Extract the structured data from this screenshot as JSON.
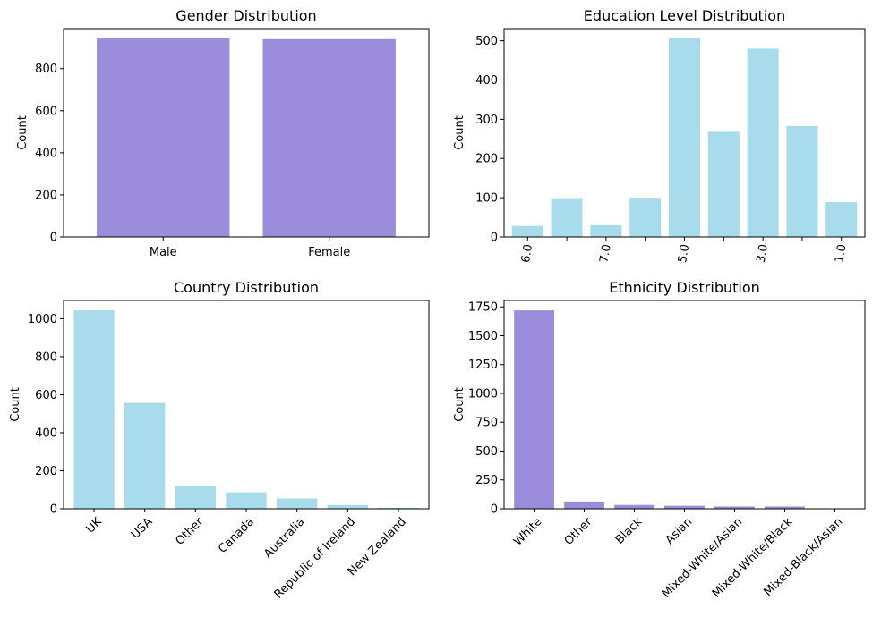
{
  "chart_data": [
    {
      "type": "bar",
      "title": "Gender Distribution",
      "xlabel": "",
      "ylabel": "Count",
      "categories": [
        "Male",
        "Female"
      ],
      "values": [
        943,
        940
      ],
      "ylim": [
        0,
        990
      ],
      "yticks": [
        0,
        200,
        400,
        600,
        800
      ],
      "color": "#9b8ddb",
      "xtick_rotation": 0
    },
    {
      "type": "bar",
      "title": "Education Level Distribution",
      "xlabel": "",
      "ylabel": "Count",
      "categories": [
        "6.0",
        "",
        "7.0",
        "",
        "5.0",
        "",
        "3.0",
        "",
        "1.0"
      ],
      "values": [
        28,
        99,
        30,
        100,
        506,
        268,
        480,
        283,
        89
      ],
      "ylim": [
        0,
        531
      ],
      "yticks": [
        0,
        100,
        200,
        300,
        400,
        500
      ],
      "color": "#a8dbec",
      "xtick_rotation": -80
    },
    {
      "type": "bar",
      "title": "Country Distribution",
      "xlabel": "",
      "ylabel": "Count",
      "categories": [
        "UK",
        "USA",
        "Other",
        "Canada",
        "Australia",
        "Republic of Ireland",
        "New Zealand"
      ],
      "values": [
        1044,
        557,
        118,
        87,
        54,
        20,
        5
      ],
      "ylim": [
        0,
        1096
      ],
      "yticks": [
        0,
        200,
        400,
        600,
        800,
        1000
      ],
      "color": "#a8dbec",
      "xtick_rotation": -45
    },
    {
      "type": "bar",
      "title": "Ethnicity Distribution",
      "xlabel": "",
      "ylabel": "Count",
      "categories": [
        "White",
        "Other",
        "Black",
        "Asian",
        "Mixed-White/Asian",
        "Mixed-White/Black",
        "Mixed-Black/Asian"
      ],
      "values": [
        1720,
        63,
        33,
        26,
        20,
        20,
        3
      ],
      "ylim": [
        0,
        1806
      ],
      "yticks": [
        0,
        250,
        500,
        750,
        1000,
        1250,
        1500,
        1750
      ],
      "color": "#9b8ddb",
      "xtick_rotation": -45
    }
  ]
}
